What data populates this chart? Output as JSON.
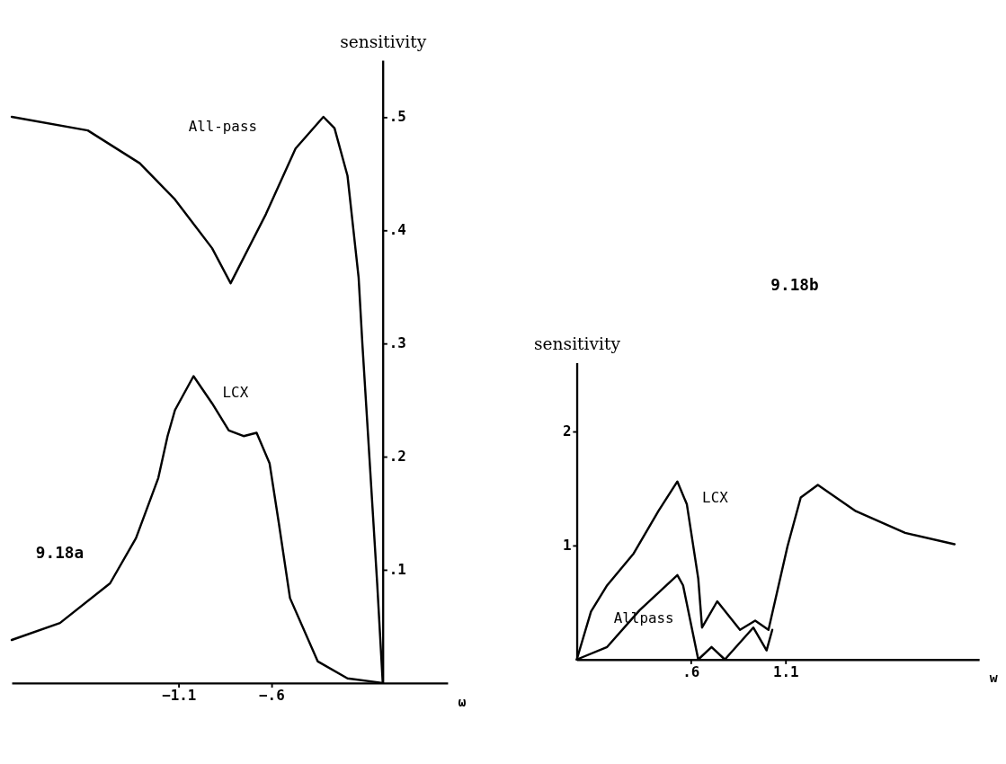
{
  "chart_data": [
    {
      "type": "line",
      "title": "9.18a",
      "xlabel": "ω",
      "ylabel": "sensitivity",
      "xlim": [
        -2.0,
        0.35
      ],
      "ylim": [
        0,
        0.55
      ],
      "xticks": [
        {
          "value": -1.1,
          "label": "−1.1"
        },
        {
          "value": -0.6,
          "label": "−.6"
        }
      ],
      "yticks": [
        {
          "value": 0.1,
          "label": ".1"
        },
        {
          "value": 0.2,
          "label": ".2"
        },
        {
          "value": 0.3,
          "label": ".3"
        },
        {
          "value": 0.4,
          "label": ".4"
        },
        {
          "value": 0.5,
          "label": ".5"
        }
      ],
      "grid": false,
      "marker": "none",
      "line_style": "solid",
      "series": [
        {
          "name": "All-pass",
          "color": "#000000",
          "x": [
            -2.0,
            -1.59,
            -1.31,
            -1.12,
            -0.92,
            -0.82,
            -0.63,
            -0.47,
            -0.32,
            -0.26,
            -0.19,
            -0.13,
            -0.11,
            -0.08,
            -0.03,
            0.0
          ],
          "values": [
            0.5,
            0.488,
            0.459,
            0.427,
            0.384,
            0.353,
            0.414,
            0.472,
            0.5,
            0.49,
            0.448,
            0.358,
            0.3,
            0.221,
            0.088,
            0.0
          ]
        },
        {
          "name": "LCX",
          "color": "#000000",
          "x": [
            -2.0,
            -1.74,
            -1.47,
            -1.33,
            -1.21,
            -1.16,
            -1.12,
            -1.02,
            -0.92,
            -0.83,
            -0.75,
            -0.68,
            -0.61,
            -0.56,
            -0.5,
            -0.35,
            -0.19,
            0.0
          ],
          "values": [
            0.038,
            0.053,
            0.088,
            0.128,
            0.181,
            0.218,
            0.241,
            0.271,
            0.247,
            0.223,
            0.218,
            0.221,
            0.194,
            0.141,
            0.075,
            0.019,
            0.004,
            0.0
          ]
        }
      ]
    },
    {
      "type": "line",
      "title": "9.18b",
      "xlabel": "w",
      "ylabel": "sensitivity",
      "xlim": [
        0,
        2.12
      ],
      "ylim": [
        0,
        2.6
      ],
      "xticks": [
        {
          "value": 0.6,
          "label": ".6"
        },
        1.1
      ],
      "yticks": [
        1,
        2
      ],
      "grid": false,
      "marker": "none",
      "line_style": "solid",
      "series": [
        {
          "name": "LCX",
          "color": "#000000",
          "x": [
            0.0,
            0.075,
            0.16,
            0.3,
            0.43,
            0.53,
            0.58,
            0.64,
            0.66,
            0.74,
            0.86,
            0.94,
            1.01,
            1.11,
            1.18,
            1.27,
            1.47,
            1.73,
            1.99
          ],
          "values": [
            0.0,
            0.42,
            0.65,
            0.93,
            1.3,
            1.56,
            1.36,
            0.71,
            0.28,
            0.51,
            0.26,
            0.34,
            0.26,
            0.99,
            1.42,
            1.53,
            1.3,
            1.11,
            1.01
          ]
        },
        {
          "name": "Allpass",
          "color": "#000000",
          "x": [
            0.0,
            0.16,
            0.33,
            0.53,
            0.56,
            0.64,
            0.71,
            0.78,
            0.93,
            1.0,
            1.03
          ],
          "values": [
            0.0,
            0.11,
            0.43,
            0.74,
            0.65,
            0.0,
            0.11,
            0.0,
            0.28,
            0.08,
            0.26
          ]
        }
      ]
    }
  ]
}
